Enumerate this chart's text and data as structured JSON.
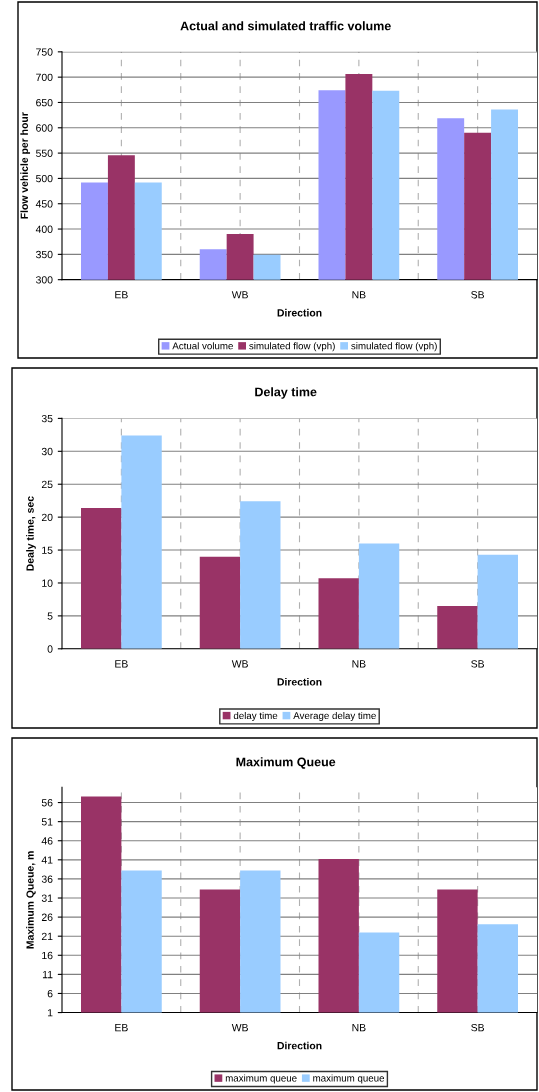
{
  "chart_data": [
    {
      "type": "bar",
      "title": "Actual and simulated traffic volume",
      "xlabel": "Direction",
      "ylabel": "Flow vehicle per hour",
      "categories": [
        "EB",
        "WB",
        "NB",
        "SB"
      ],
      "series": [
        {
          "name": "Actual volume",
          "color": "#9999ff",
          "values": [
            492,
            360,
            674,
            619
          ]
        },
        {
          "name": "simulated flow (vph)",
          "color": "#993366",
          "values": [
            546,
            390,
            706,
            590
          ]
        },
        {
          "name": "simulated flow (vph)",
          "color": "#99ccff",
          "values": [
            492,
            349,
            673,
            636
          ]
        }
      ],
      "ylim": [
        300,
        750
      ],
      "yticks": [
        300,
        350,
        400,
        450,
        500,
        550,
        600,
        650,
        700,
        750
      ],
      "grid": true,
      "legend": "bottom"
    },
    {
      "type": "bar",
      "title": "Delay time",
      "xlabel": "Direction",
      "ylabel": "Dealy time, sec",
      "categories": [
        "EB",
        "WB",
        "NB",
        "SB"
      ],
      "series": [
        {
          "name": "delay time",
          "color": "#993366",
          "values": [
            21.4,
            14,
            10.7,
            6.5
          ]
        },
        {
          "name": "Average delay time",
          "color": "#99ccff",
          "values": [
            32.4,
            22.4,
            16,
            14.3
          ]
        }
      ],
      "ylim": [
        0,
        35
      ],
      "yticks": [
        0,
        5,
        10,
        15,
        20,
        25,
        30,
        35
      ],
      "grid": true,
      "legend": "bottom"
    },
    {
      "type": "bar",
      "title": "Maximum Queue",
      "xlabel": "Direction",
      "ylabel": "Maximum Queue, m",
      "categories": [
        "EB",
        "WB",
        "NB",
        "SB"
      ],
      "series": [
        {
          "name": "maximum queue",
          "color": "#993366",
          "values": [
            57.6,
            33.2,
            41.2,
            33.2
          ]
        },
        {
          "name": "maximum queue",
          "color": "#99ccff",
          "values": [
            38.2,
            38.2,
            22,
            24.1
          ]
        }
      ],
      "ylim": [
        1,
        60
      ],
      "yticks": [
        1,
        6,
        11,
        16,
        21,
        26,
        31,
        36,
        41,
        46,
        51,
        56
      ],
      "grid": true,
      "legend": "bottom"
    }
  ]
}
